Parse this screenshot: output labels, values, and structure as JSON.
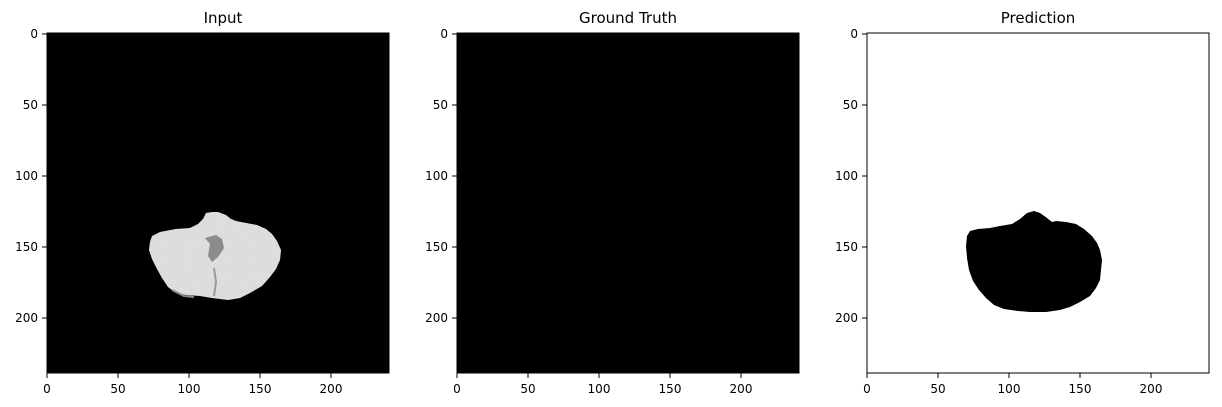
{
  "panels": [
    {
      "title": "Input",
      "background": "#000000",
      "foreground": "#e8e8e8",
      "x_ticks": [
        "0",
        "50",
        "100",
        "150",
        "200"
      ],
      "y_ticks": [
        "0",
        "50",
        "100",
        "150",
        "200"
      ]
    },
    {
      "title": "Ground Truth",
      "background": "#000000",
      "x_ticks": [
        "0",
        "50",
        "100",
        "150",
        "200"
      ],
      "y_ticks": [
        "0",
        "50",
        "100",
        "150",
        "200"
      ]
    },
    {
      "title": "Prediction",
      "background": "#ffffff",
      "foreground": "#000000",
      "x_ticks": [
        "0",
        "50",
        "100",
        "150",
        "200"
      ],
      "y_ticks": [
        "0",
        "50",
        "100",
        "150",
        "200"
      ]
    }
  ]
}
